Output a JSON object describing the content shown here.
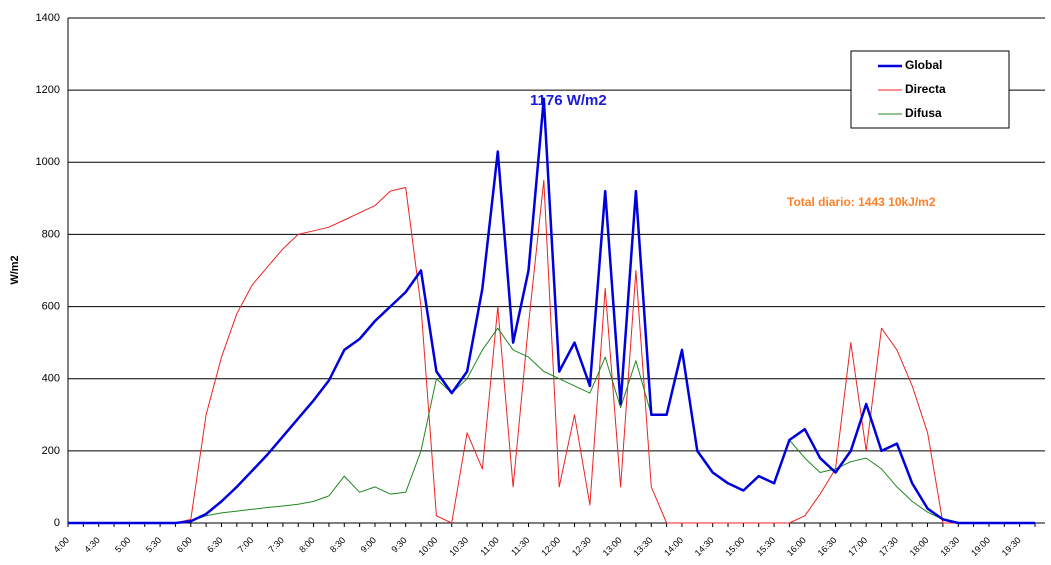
{
  "chart_data": {
    "type": "line",
    "y_label": "W/m2",
    "annotations": [
      "1176  W/m2",
      "Total diario:  1443  10kJ/m2"
    ],
    "categories": [
      "4:00",
      null,
      "4:30",
      null,
      "5:00",
      null,
      "5:30",
      null,
      "6:00",
      null,
      "6:30",
      null,
      "7:00",
      null,
      "7:30",
      null,
      "8:00",
      null,
      "8:30",
      null,
      "9:00",
      null,
      "9:30",
      null,
      "10:00",
      null,
      "10:30",
      null,
      "11:00",
      null,
      "11:30",
      null,
      "12:00",
      null,
      "12:30",
      null,
      "13:00",
      null,
      "13:30",
      null,
      "14:00",
      null,
      "14:30",
      null,
      "15:00",
      null,
      "15:30",
      null,
      "16:00",
      null,
      "16:30",
      null,
      "17:00",
      null,
      "17:30",
      null,
      "18:00",
      null,
      "18:30",
      null,
      "19:00",
      null,
      "19:30",
      null
    ],
    "series": [
      {
        "name": "Global",
        "color": "#0000dd",
        "width": 2.5,
        "values": [
          0,
          0,
          0,
          0,
          0,
          0,
          0,
          0,
          5,
          25,
          60,
          100,
          145,
          190,
          240,
          290,
          340,
          395,
          480,
          510,
          560,
          600,
          640,
          700,
          420,
          360,
          420,
          650,
          1030,
          500,
          700,
          1176,
          420,
          500,
          380,
          920,
          330,
          920,
          300,
          300,
          480,
          200,
          140,
          110,
          90,
          130,
          110,
          230,
          260,
          180,
          140,
          200,
          330,
          200,
          220,
          110,
          40,
          10,
          0,
          0,
          0,
          0,
          0,
          0
        ]
      },
      {
        "name": "Directa",
        "color": "#ee2222",
        "width": 1,
        "values": [
          0,
          0,
          0,
          0,
          0,
          0,
          0,
          0,
          10,
          300,
          460,
          580,
          660,
          710,
          760,
          800,
          810,
          820,
          840,
          860,
          880,
          920,
          930,
          600,
          20,
          0,
          250,
          150,
          600,
          100,
          550,
          950,
          100,
          300,
          50,
          650,
          100,
          700,
          100,
          0,
          0,
          0,
          0,
          0,
          0,
          0,
          0,
          0,
          20,
          80,
          150,
          500,
          200,
          540,
          480,
          380,
          250,
          0,
          0,
          0,
          0,
          0,
          0,
          0
        ]
      },
      {
        "name": "Difusa",
        "color": "#228822",
        "width": 1,
        "values": [
          0,
          0,
          0,
          0,
          0,
          0,
          0,
          0,
          5,
          20,
          28,
          33,
          38,
          43,
          47,
          52,
          60,
          75,
          130,
          85,
          100,
          80,
          85,
          200,
          400,
          360,
          400,
          480,
          540,
          480,
          460,
          420,
          400,
          380,
          360,
          460,
          320,
          450,
          300,
          300,
          470,
          200,
          140,
          110,
          90,
          130,
          110,
          230,
          180,
          140,
          150,
          170,
          180,
          150,
          100,
          60,
          30,
          10,
          0,
          0,
          0,
          0,
          0,
          0
        ]
      }
    ],
    "ylim": [
      0,
      1400
    ],
    "yticks": [
      0,
      200,
      400,
      600,
      800,
      1000,
      1200,
      1400
    ],
    "grid": true
  }
}
